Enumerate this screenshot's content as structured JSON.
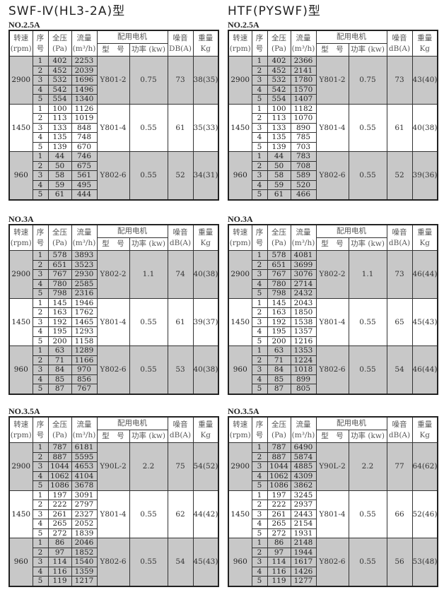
{
  "headers": {
    "rpm": "转速",
    "rpm_unit": "(rpm)",
    "seq": "序",
    "seq2": "号",
    "pressure": "全压",
    "pressure_unit": "(Pa)",
    "flow": "流量",
    "flow_unit": "(m³/h)",
    "motor": "配用电机",
    "model": "型　号",
    "power": "功率 (kw)",
    "noise": "噪音",
    "weight": "重量",
    "weight_unit": "Kg"
  },
  "colors": {
    "shade": "#c8c8c8"
  },
  "tables": [
    {
      "title": "SWF-Ⅳ(HL3-2A)型",
      "size": "NO.2.5A",
      "noise_unit": "DB(A)",
      "groups": [
        {
          "rpm": "2900",
          "model": "Y801-2",
          "power": "0.75",
          "noise": "73",
          "weight": "38(35)",
          "shaded": true,
          "rows": [
            [
              "1",
              "402",
              "2253"
            ],
            [
              "2",
              "452",
              "2039"
            ],
            [
              "3",
              "532",
              "1696"
            ],
            [
              "4",
              "542",
              "1496"
            ],
            [
              "5",
              "554",
              "1340"
            ]
          ]
        },
        {
          "rpm": "1450",
          "model": "Y801-4",
          "power": "0.55",
          "noise": "61",
          "weight": "35(33)",
          "shaded": false,
          "rows": [
            [
              "1",
              "100",
              "1126"
            ],
            [
              "2",
              "113",
              "1019"
            ],
            [
              "3",
              "133",
              "848"
            ],
            [
              "4",
              "135",
              "748"
            ],
            [
              "5",
              "139",
              "670"
            ]
          ]
        },
        {
          "rpm": "960",
          "model": "Y802-6",
          "power": "0.55",
          "noise": "52",
          "weight": "34(31)",
          "shaded": true,
          "rows": [
            [
              "1",
              "44",
              "746"
            ],
            [
              "2",
              "50",
              "675"
            ],
            [
              "3",
              "58",
              "561"
            ],
            [
              "4",
              "59",
              "495"
            ],
            [
              "5",
              "61",
              "444"
            ]
          ]
        }
      ]
    },
    {
      "title": "HTF(PYSWF)型",
      "size": "NO.2.5A",
      "noise_unit": "dB(A)",
      "groups": [
        {
          "rpm": "2900",
          "model": "Y801-2",
          "power": "0.75",
          "noise": "73",
          "weight": "43(40)",
          "shaded": true,
          "rows": [
            [
              "1",
              "402",
              "2366"
            ],
            [
              "2",
              "452",
              "2141"
            ],
            [
              "3",
              "532",
              "1780"
            ],
            [
              "4",
              "542",
              "1570"
            ],
            [
              "5",
              "554",
              "1407"
            ]
          ]
        },
        {
          "rpm": "1450",
          "model": "Y801-4",
          "power": "0.55",
          "noise": "61",
          "weight": "40(38)",
          "shaded": false,
          "rows": [
            [
              "1",
              "100",
              "1182"
            ],
            [
              "2",
              "113",
              "1070"
            ],
            [
              "3",
              "133",
              "890"
            ],
            [
              "4",
              "135",
              "785"
            ],
            [
              "5",
              "139",
              "703"
            ]
          ]
        },
        {
          "rpm": "960",
          "model": "Y802-6",
          "power": "0.55",
          "noise": "52",
          "weight": "39(36)",
          "shaded": true,
          "rows": [
            [
              "1",
              "44",
              "783"
            ],
            [
              "2",
              "50",
              "708"
            ],
            [
              "3",
              "58",
              "589"
            ],
            [
              "4",
              "59",
              "520"
            ],
            [
              "5",
              "61",
              "466"
            ]
          ]
        }
      ]
    },
    {
      "title": "",
      "size": "NO.3A",
      "noise_unit": "dB(A)",
      "groups": [
        {
          "rpm": "2900",
          "model": "Y802-2",
          "power": "1.1",
          "noise": "74",
          "weight": "40(38)",
          "shaded": true,
          "rows": [
            [
              "1",
              "578",
              "3893"
            ],
            [
              "2",
              "651",
              "3523"
            ],
            [
              "3",
              "767",
              "2930"
            ],
            [
              "4",
              "780",
              "2585"
            ],
            [
              "5",
              "798",
              "2316"
            ]
          ]
        },
        {
          "rpm": "1450",
          "model": "Y801-4",
          "power": "0.55",
          "noise": "61",
          "weight": "39(37)",
          "shaded": false,
          "rows": [
            [
              "1",
              "145",
              "1946"
            ],
            [
              "2",
              "163",
              "1762"
            ],
            [
              "3",
              "192",
              "1465"
            ],
            [
              "4",
              "195",
              "1293"
            ],
            [
              "5",
              "200",
              "1158"
            ]
          ]
        },
        {
          "rpm": "960",
          "model": "Y802-6",
          "power": "0.55",
          "noise": "53",
          "weight": "40(38)",
          "shaded": true,
          "rows": [
            [
              "1",
              "63",
              "1289"
            ],
            [
              "2",
              "71",
              "1166"
            ],
            [
              "3",
              "84",
              "970"
            ],
            [
              "4",
              "85",
              "856"
            ],
            [
              "5",
              "87",
              "767"
            ]
          ]
        }
      ]
    },
    {
      "title": "",
      "size": "NO.3A",
      "noise_unit": "dB(A)",
      "groups": [
        {
          "rpm": "2900",
          "model": "Y802-2",
          "power": "1.1",
          "noise": "73",
          "weight": "46(44)",
          "shaded": true,
          "rows": [
            [
              "1",
              "578",
              "4081"
            ],
            [
              "2",
              "651",
              "3699"
            ],
            [
              "3",
              "767",
              "3076"
            ],
            [
              "4",
              "780",
              "2714"
            ],
            [
              "5",
              "798",
              "2432"
            ]
          ]
        },
        {
          "rpm": "1450",
          "model": "Y801-4",
          "power": "0.55",
          "noise": "65",
          "weight": "45(43)",
          "shaded": false,
          "rows": [
            [
              "1",
              "145",
              "2043"
            ],
            [
              "2",
              "163",
              "1850"
            ],
            [
              "3",
              "192",
              "1538"
            ],
            [
              "4",
              "195",
              "1357"
            ],
            [
              "5",
              "200",
              "1216"
            ]
          ]
        },
        {
          "rpm": "960",
          "model": "Y802-6",
          "power": "0.55",
          "noise": "54",
          "weight": "46(44)",
          "shaded": true,
          "rows": [
            [
              "1",
              "63",
              "1353"
            ],
            [
              "2",
              "71",
              "1224"
            ],
            [
              "3",
              "84",
              "1018"
            ],
            [
              "4",
              "85",
              "899"
            ],
            [
              "5",
              "87",
              "805"
            ]
          ]
        }
      ]
    },
    {
      "title": "",
      "size": "NO.3.5A",
      "noise_unit": "dB(A)",
      "groups": [
        {
          "rpm": "2900",
          "model": "Y90L-2",
          "power": "2.2",
          "noise": "75",
          "weight": "54(52)",
          "shaded": true,
          "rows": [
            [
              "1",
              "787",
              "6181"
            ],
            [
              "2",
              "887",
              "5595"
            ],
            [
              "3",
              "1044",
              "4653"
            ],
            [
              "4",
              "1062",
              "4104"
            ],
            [
              "5",
              "1086",
              "3678"
            ]
          ]
        },
        {
          "rpm": "1450",
          "model": "Y801-4",
          "power": "0.55",
          "noise": "62",
          "weight": "44(42)",
          "shaded": false,
          "rows": [
            [
              "1",
              "197",
              "3091"
            ],
            [
              "2",
              "222",
              "2797"
            ],
            [
              "3",
              "261",
              "2327"
            ],
            [
              "4",
              "265",
              "2052"
            ],
            [
              "5",
              "272",
              "1839"
            ]
          ]
        },
        {
          "rpm": "960",
          "model": "Y802-6",
          "power": "0.55",
          "noise": "54",
          "weight": "45(43)",
          "shaded": true,
          "rows": [
            [
              "1",
              "86",
              "2046"
            ],
            [
              "2",
              "97",
              "1852"
            ],
            [
              "3",
              "114",
              "1540"
            ],
            [
              "4",
              "116",
              "1359"
            ],
            [
              "5",
              "119",
              "1217"
            ]
          ]
        }
      ]
    },
    {
      "title": "",
      "size": "NO.3.5A",
      "noise_unit": "dB(A)",
      "groups": [
        {
          "rpm": "2900",
          "model": "Y90L-2",
          "power": "2.2",
          "noise": "77",
          "weight": "64(62)",
          "shaded": true,
          "rows": [
            [
              "1",
              "787",
              "6490"
            ],
            [
              "2",
              "887",
              "5874"
            ],
            [
              "3",
              "1044",
              "4885"
            ],
            [
              "4",
              "1062",
              "4309"
            ],
            [
              "5",
              "1086",
              "3862"
            ]
          ]
        },
        {
          "rpm": "1450",
          "model": "Y801-4",
          "power": "0.55",
          "noise": "66",
          "weight": "52(46)",
          "shaded": false,
          "rows": [
            [
              "1",
              "197",
              "3245"
            ],
            [
              "2",
              "222",
              "2937"
            ],
            [
              "3",
              "261",
              "2443"
            ],
            [
              "4",
              "265",
              "2154"
            ],
            [
              "5",
              "272",
              "1931"
            ]
          ]
        },
        {
          "rpm": "960",
          "model": "Y802-6",
          "power": "0.55",
          "noise": "56",
          "weight": "53(48)",
          "shaded": true,
          "rows": [
            [
              "1",
              "86",
              "2148"
            ],
            [
              "2",
              "97",
              "1944"
            ],
            [
              "3",
              "114",
              "1617"
            ],
            [
              "4",
              "116",
              "1426"
            ],
            [
              "5",
              "119",
              "1277"
            ]
          ]
        }
      ]
    }
  ]
}
